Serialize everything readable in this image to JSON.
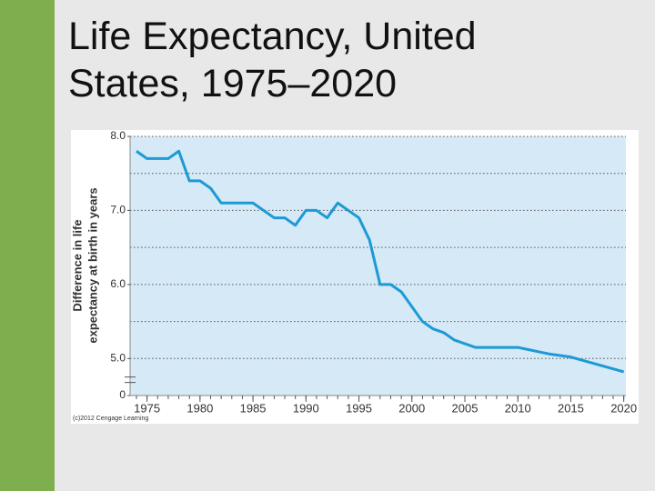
{
  "header": {
    "title_lines": [
      "Life Expectancy, United",
      "States, 1975–2020"
    ]
  },
  "chart_data": {
    "type": "line",
    "ylabel_lines": [
      "Difference in life",
      "expectancy at birth in years"
    ],
    "credit": "(c)2012 Cengage Learning",
    "x": [
      1974,
      1975,
      1976,
      1977,
      1978,
      1979,
      1980,
      1981,
      1982,
      1983,
      1984,
      1985,
      1986,
      1987,
      1988,
      1989,
      1990,
      1991,
      1992,
      1993,
      1994,
      1995,
      1996,
      1997,
      1998,
      1999,
      2000,
      2001,
      2002,
      2003,
      2004,
      2005,
      2006,
      2007,
      2008,
      2009,
      2010,
      2011,
      2012,
      2013,
      2014,
      2015,
      2016,
      2017,
      2018,
      2019,
      2020
    ],
    "series": [
      {
        "color": "#1c9ad6",
        "values": [
          7.8,
          7.7,
          7.7,
          7.7,
          7.8,
          7.4,
          7.4,
          7.3,
          7.1,
          7.1,
          7.1,
          7.1,
          7.0,
          6.9,
          6.9,
          6.8,
          7.0,
          7.0,
          6.9,
          7.1,
          7.0,
          6.9,
          6.6,
          6.0,
          6.0,
          5.9,
          5.7,
          5.5,
          5.4,
          5.35,
          5.25,
          5.2,
          5.15,
          5.15,
          5.15,
          5.15,
          5.15,
          5.12,
          5.09,
          5.06,
          5.04,
          5.02,
          4.98,
          4.94,
          4.9,
          4.86,
          4.82
        ]
      }
    ],
    "xlim": [
      1973.4,
      2020.2
    ],
    "xticks": [
      1975,
      1980,
      1985,
      1990,
      1995,
      2000,
      2005,
      2010,
      2015,
      2020
    ],
    "ylim": [
      4.5,
      8.0
    ],
    "yticks": [
      0,
      {
        "value": 5.0,
        "label": "5.0"
      },
      {
        "value": 6.0,
        "label": "6.0"
      },
      {
        "value": 7.0,
        "label": "7.0"
      },
      {
        "value": 8.0,
        "label": "8.0"
      }
    ],
    "ygrid": [
      5.0,
      5.5,
      6.0,
      6.5,
      7.0,
      7.5,
      8.0
    ],
    "axis_break": true
  }
}
